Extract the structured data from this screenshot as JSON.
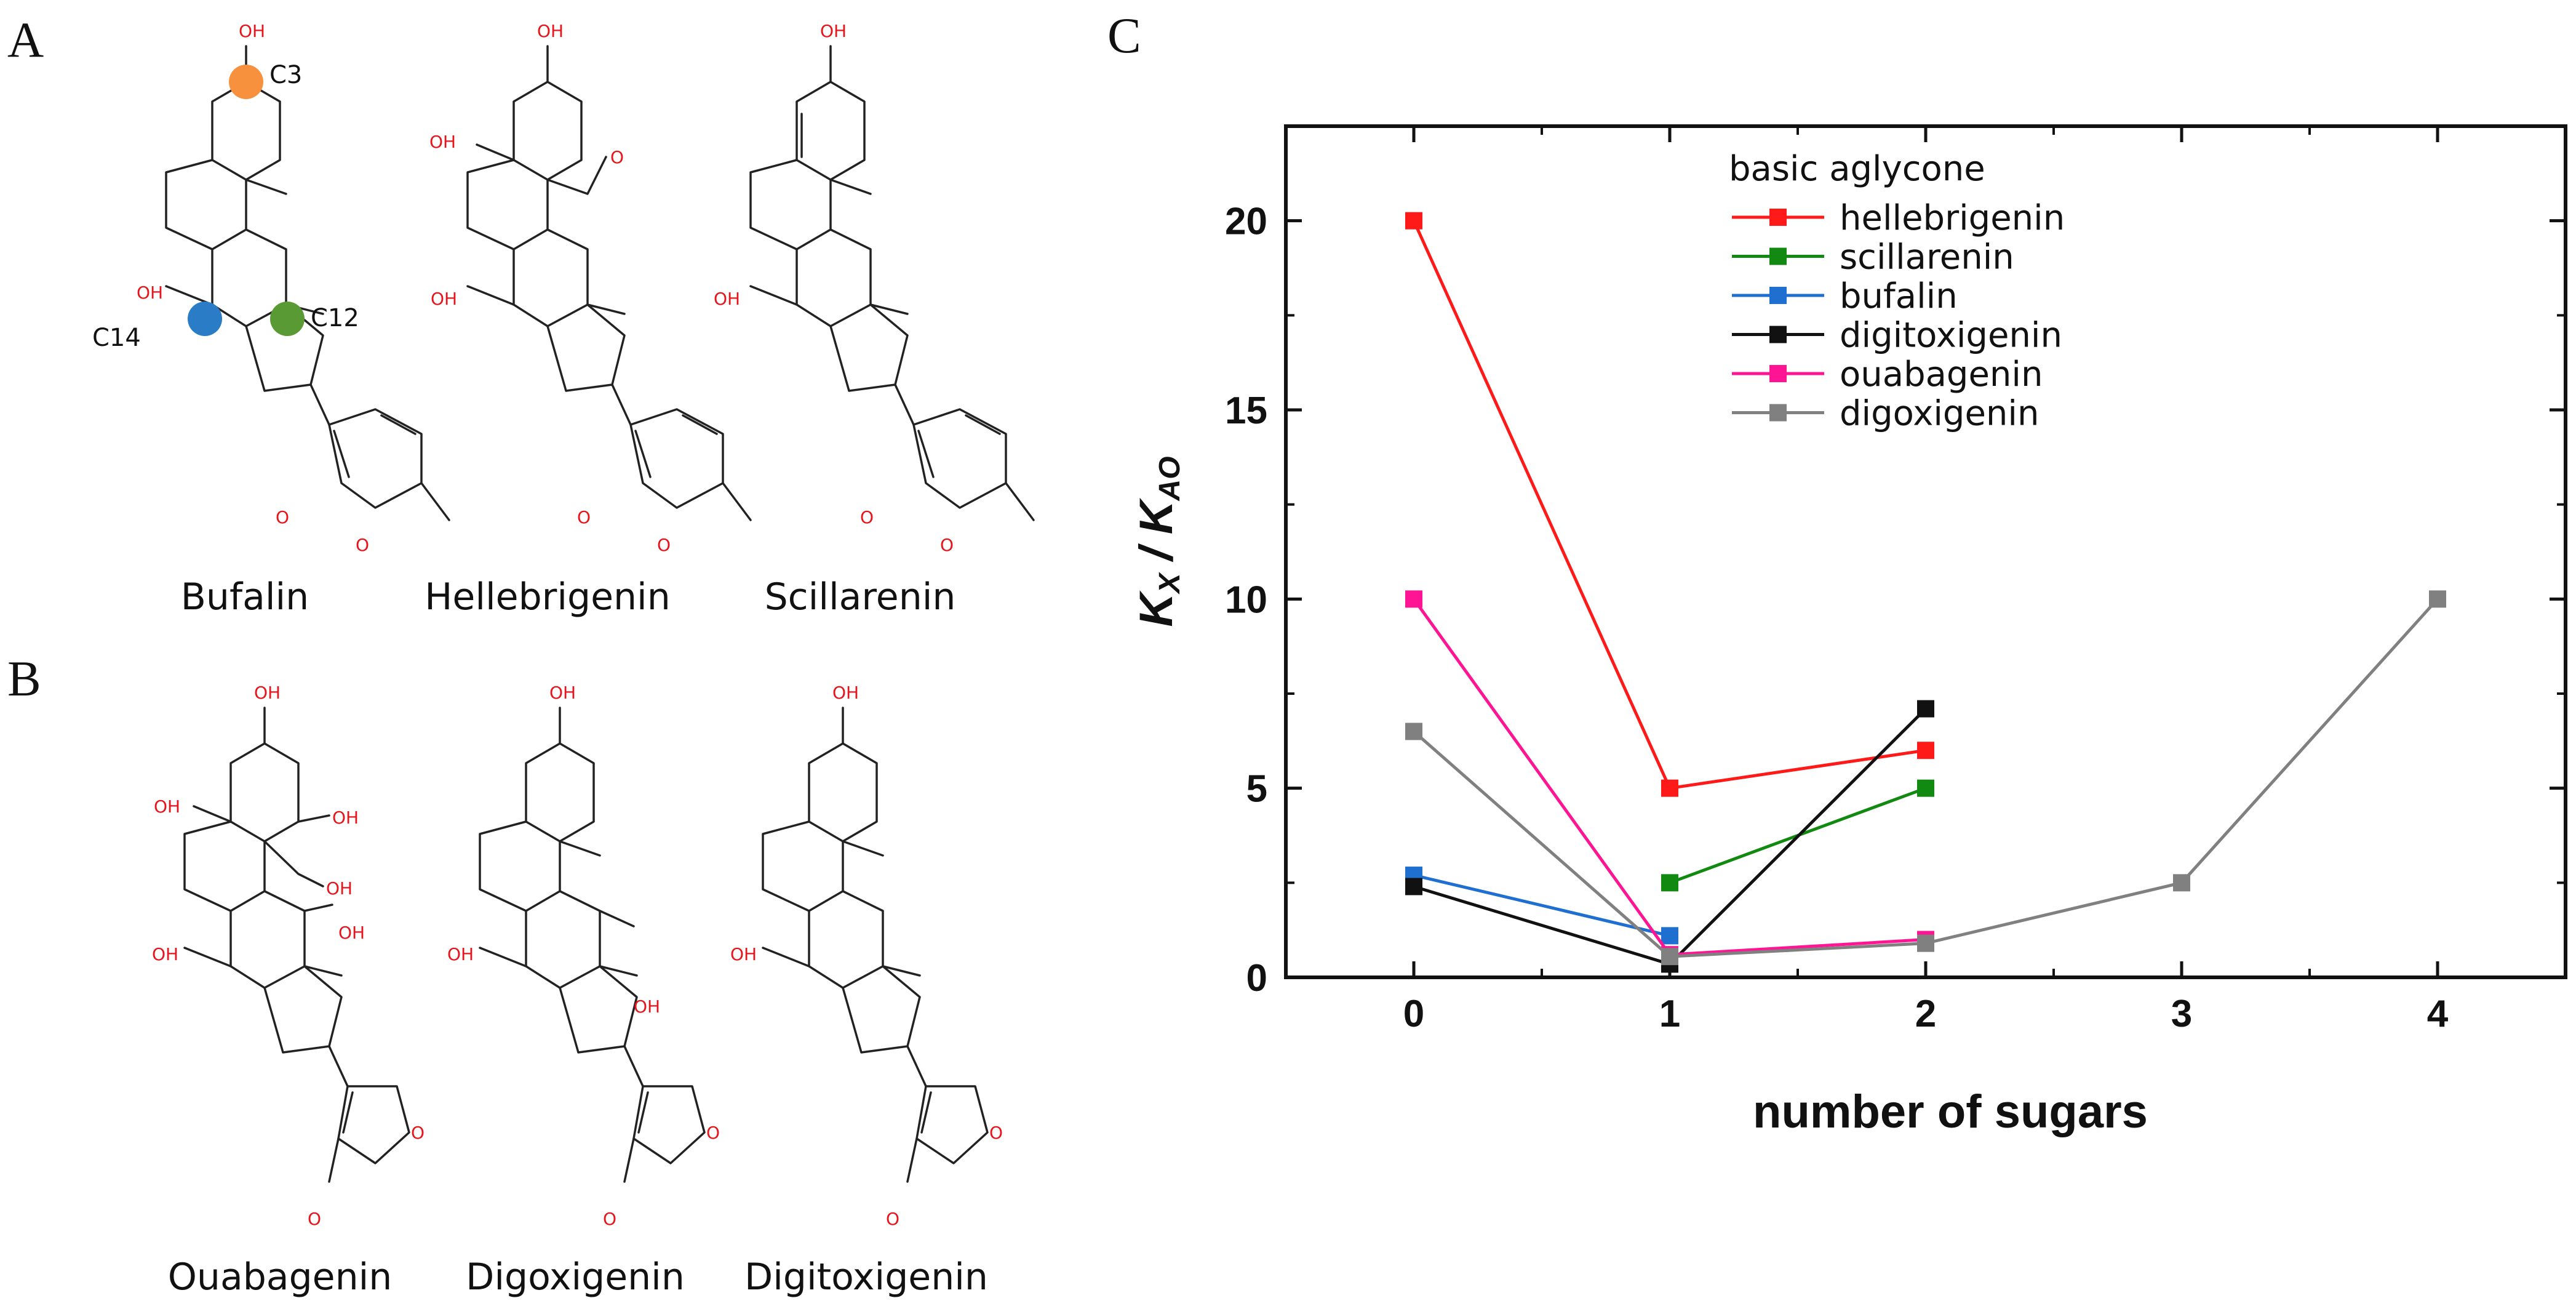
{
  "panels": {
    "a": "A",
    "b": "B",
    "c": "C"
  },
  "molecules": {
    "bufalin": "Bufalin",
    "hellebrigenin": "Hellebrigenin",
    "scillarenin": "Scillarenin",
    "ouabagenin": "Ouabagenin",
    "digoxigenin": "Digoxigenin",
    "digitoxigenin": "Digitoxigenin"
  },
  "atom_labels": {
    "hydroxyl": "OH",
    "ring_oxygen": "O",
    "c3": "C3",
    "c12": "C12",
    "c14": "C14"
  },
  "site_colors": {
    "c3": "#f7913d",
    "c12": "#5a9a35",
    "c14": "#2b7cc6"
  },
  "chart_data": {
    "type": "line",
    "xlabel": "number of sugars",
    "ylabel_main": "K",
    "ylabel_sub1": "X",
    "ylabel_mid": " / K",
    "ylabel_sub2": "AO",
    "xlim": [
      -0.5,
      4.5
    ],
    "ylim": [
      0,
      22.5
    ],
    "xticks": [
      0,
      1,
      2,
      3,
      4
    ],
    "yticks": [
      0,
      5,
      10,
      15,
      20
    ],
    "legend_title": "basic aglycone",
    "legend_position": "top-center",
    "series": [
      {
        "name": "hellebrigenin",
        "color": "#ff1a1a",
        "x": [
          0,
          1,
          2
        ],
        "y": [
          20,
          5,
          6
        ]
      },
      {
        "name": "scillarenin",
        "color": "#128a12",
        "x": [
          1,
          2
        ],
        "y": [
          2.5,
          5
        ]
      },
      {
        "name": "bufalin",
        "color": "#1f6fd0",
        "x": [
          0,
          1
        ],
        "y": [
          2.7,
          1.1
        ]
      },
      {
        "name": "digitoxigenin",
        "color": "#111111",
        "x": [
          0,
          1,
          2
        ],
        "y": [
          2.4,
          0.35,
          7.1
        ]
      },
      {
        "name": "ouabagenin",
        "color": "#ff1493",
        "x": [
          0,
          1,
          2
        ],
        "y": [
          10,
          0.6,
          1.0
        ]
      },
      {
        "name": "digoxigenin",
        "color": "#808080",
        "x": [
          0,
          1,
          2,
          3,
          4
        ],
        "y": [
          6.5,
          0.55,
          0.9,
          2.5,
          10
        ]
      }
    ]
  }
}
